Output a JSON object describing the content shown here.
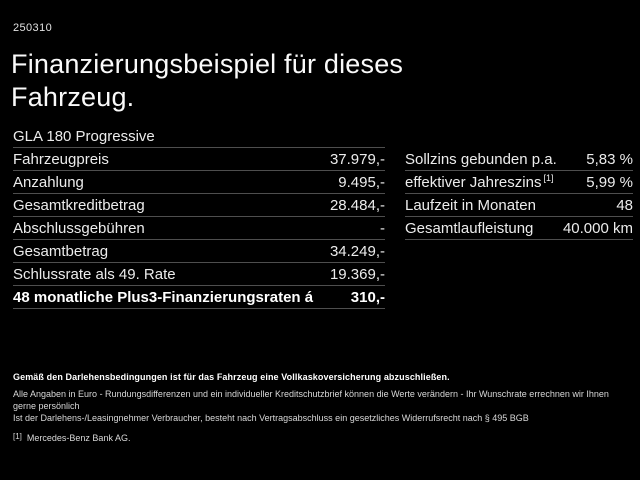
{
  "page": {
    "doc_number": "250310",
    "title": "Finanzierungsbeispiel für dieses Fahrzeug."
  },
  "left_table": {
    "header": "GLA 180 Progressive",
    "rows": [
      {
        "label": "Fahrzeugpreis",
        "value": "37.979,-"
      },
      {
        "label": "Anzahlung",
        "value": "9.495,-"
      },
      {
        "label": "Gesamtkreditbetrag",
        "value": "28.484,-"
      },
      {
        "label": "Abschlussgebühren",
        "value": "-"
      },
      {
        "label": "Gesamtbetrag",
        "value": "34.249,-"
      },
      {
        "label": "Schlussrate als 49. Rate",
        "value": "19.369,-"
      }
    ],
    "highlight_row": {
      "label": "48 monatliche Plus3-Finanzierungsraten á",
      "value": "310,-"
    }
  },
  "right_table": {
    "rows": [
      {
        "label": "Sollzins gebunden p.a.",
        "sup": "",
        "value": "5,83 %"
      },
      {
        "label": "effektiver Jahreszins",
        "sup": "[1]",
        "value": "5,99 %"
      },
      {
        "label": "Laufzeit in Monaten",
        "sup": "",
        "value": "48"
      },
      {
        "label": "Gesamtlaufleistung",
        "sup": "",
        "value": "40.000 km"
      }
    ]
  },
  "fine_print": {
    "line1": "Gemäß den Darlehensbedingungen ist für das Fahrzeug eine Vollkaskoversicherung abzuschließen.",
    "line2": "Alle Angaben in Euro - Rundungsdifferenzen und ein individueller Kreditschutzbrief können die Werte verändern - Ihr Wunschrate errechnen wir Ihnen gerne persönlich",
    "line3": "Ist der Darlehens-/Leasingnehmer Verbraucher, besteht nach Vertragsabschluss ein gesetzliches Widerrufsrecht nach § 495 BGB",
    "footnote_marker": "[1]",
    "footnote_text": "Mercedes-Benz Bank AG."
  },
  "colors": {
    "background": "#000000",
    "text": "#ececec",
    "divider": "#4e4e4e"
  }
}
